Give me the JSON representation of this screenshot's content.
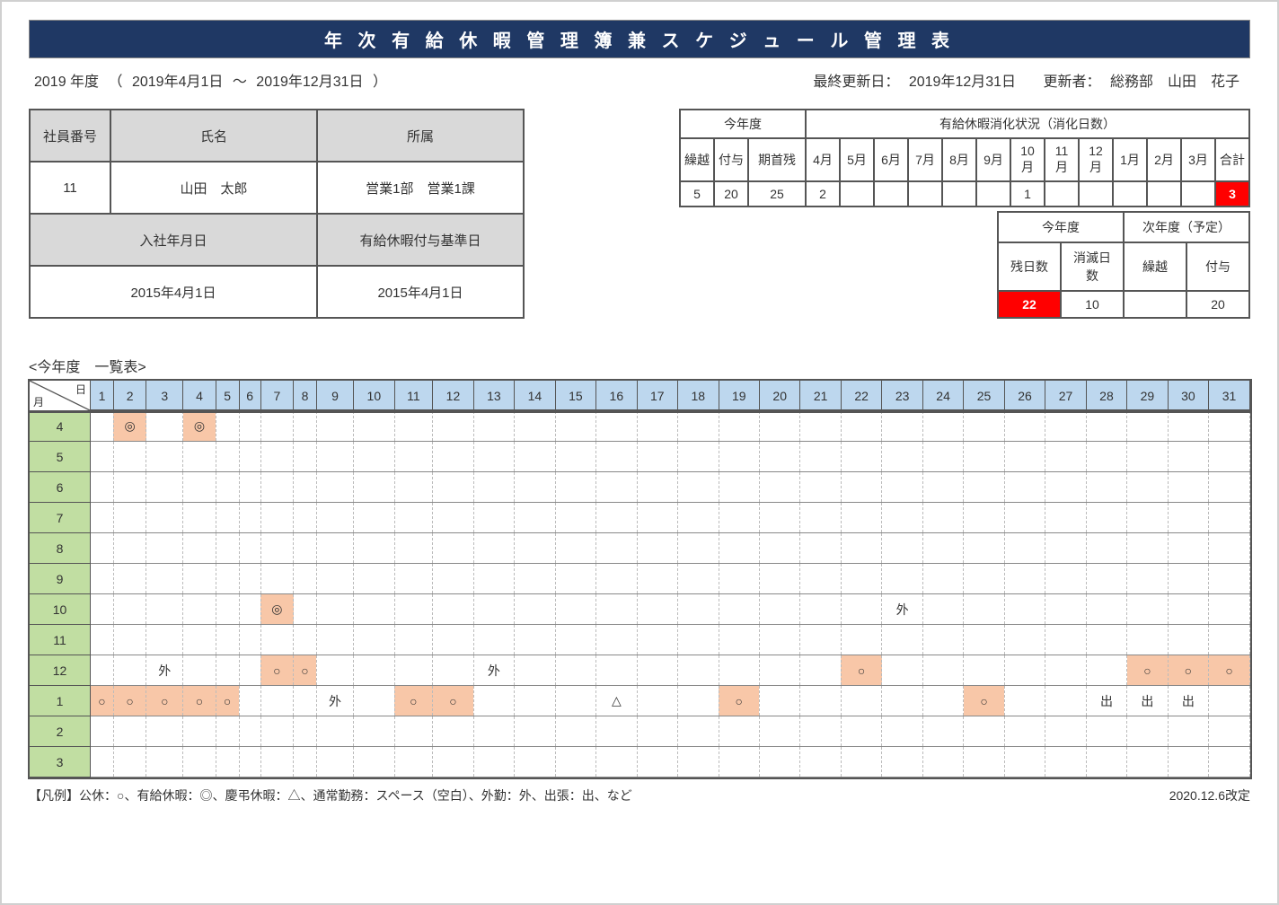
{
  "title": "年 次 有 給 休 暇 管 理 簿 兼 ス ケ ジ ュ ー ル 管 理 表",
  "header": {
    "fiscal_year": "2019 年度",
    "period_open": "（",
    "period_from": "2019年4月1日",
    "period_sep": "〜",
    "period_to": "2019年12月31日",
    "period_close": "）",
    "last_update_label": "最終更新日：",
    "last_update_value": "2019年12月31日",
    "updater_label": "更新者：",
    "updater_value": "総務部　山田　花子"
  },
  "employee": {
    "labels": {
      "emp_no": "社員番号",
      "name": "氏名",
      "dept": "所属",
      "hire_date": "入社年月日",
      "grant_base": "有給休暇付与基準日"
    },
    "emp_no": "11",
    "name": "山田　太郎",
    "dept": "営業1部　営業1課",
    "hire_date": "2015年4月1日",
    "grant_base": "2015年4月1日"
  },
  "summary": {
    "group_current": "今年度",
    "group_usage": "有給休暇消化状況（消化日数）",
    "labels": {
      "carry": "繰越",
      "grant": "付与",
      "start_bal": "期首残",
      "m4": "4月",
      "m5": "5月",
      "m6": "6月",
      "m7": "7月",
      "m8": "8月",
      "m9": "9月",
      "m10": "10月",
      "m11": "11月",
      "m12": "12月",
      "m1": "1月",
      "m2": "2月",
      "m3": "3月",
      "total": "合計"
    },
    "values": {
      "carry": "5",
      "grant": "20",
      "start_bal": "25",
      "m4": "2",
      "m5": "",
      "m6": "",
      "m7": "",
      "m8": "",
      "m9": "",
      "m10": "1",
      "m11": "",
      "m12": "",
      "m1": "",
      "m2": "",
      "m3": "",
      "total": "3"
    },
    "lower": {
      "group_current": "今年度",
      "group_next": "次年度（予定）",
      "remain_label": "残日数",
      "remain": "22",
      "expire_label": "消滅日数",
      "expire": "10",
      "carry_label": "繰越",
      "carry": "",
      "grant_label": "付与",
      "grant": "20"
    }
  },
  "list_heading": "<今年度　一覧表>",
  "corner": {
    "day": "日",
    "month": "月"
  },
  "days": [
    "1",
    "2",
    "3",
    "4",
    "5",
    "6",
    "7",
    "8",
    "9",
    "10",
    "11",
    "12",
    "13",
    "14",
    "15",
    "16",
    "17",
    "18",
    "19",
    "20",
    "21",
    "22",
    "23",
    "24",
    "25",
    "26",
    "27",
    "28",
    "29",
    "30",
    "31"
  ],
  "months": [
    "4",
    "5",
    "6",
    "7",
    "8",
    "9",
    "10",
    "11",
    "12",
    "1",
    "2",
    "3"
  ],
  "calendar": {
    "4": {
      "2": {
        "t": "◎",
        "hl": true
      },
      "4": {
        "t": "◎",
        "hl": true
      }
    },
    "5": {},
    "6": {},
    "7": {},
    "8": {},
    "9": {},
    "10": {
      "7": {
        "t": "◎",
        "hl": true
      },
      "23": {
        "t": "外"
      }
    },
    "11": {},
    "12": {
      "3": {
        "t": "外"
      },
      "7": {
        "t": "○",
        "hl": true
      },
      "8": {
        "t": "○",
        "hl": true
      },
      "13": {
        "t": "外"
      },
      "22": {
        "t": "○",
        "hl": true
      },
      "29": {
        "t": "○",
        "hl": true
      },
      "30": {
        "t": "○",
        "hl": true
      },
      "31": {
        "t": "○",
        "hl": true
      }
    },
    "1": {
      "1": {
        "t": "○",
        "hl": true
      },
      "2": {
        "t": "○",
        "hl": true
      },
      "3": {
        "t": "○",
        "hl": true
      },
      "4": {
        "t": "○",
        "hl": true
      },
      "5": {
        "t": "○",
        "hl": true
      },
      "9": {
        "t": "外"
      },
      "11": {
        "t": "○",
        "hl": true
      },
      "12": {
        "t": "○",
        "hl": true
      },
      "16": {
        "t": "△"
      },
      "19": {
        "t": "○",
        "hl": true
      },
      "25": {
        "t": "○",
        "hl": true
      },
      "28": {
        "t": "出"
      },
      "29": {
        "t": "出"
      },
      "30": {
        "t": "出"
      }
    },
    "2": {},
    "3": {}
  },
  "legend": "【凡例】公休：○、有給休暇：◎、慶弔休暇：△、通常勤務：スペース（空白）、外勤：外、出張：出、など",
  "revised": "2020.12.6改定",
  "colors": {
    "title_bg": "#1f3864",
    "header_bg": "#d9d9d9",
    "day_header_bg": "#bdd7ee",
    "month_bg": "#c1dea2",
    "highlight_bg": "#f8c7a8",
    "alert_bg": "#ff0000"
  }
}
